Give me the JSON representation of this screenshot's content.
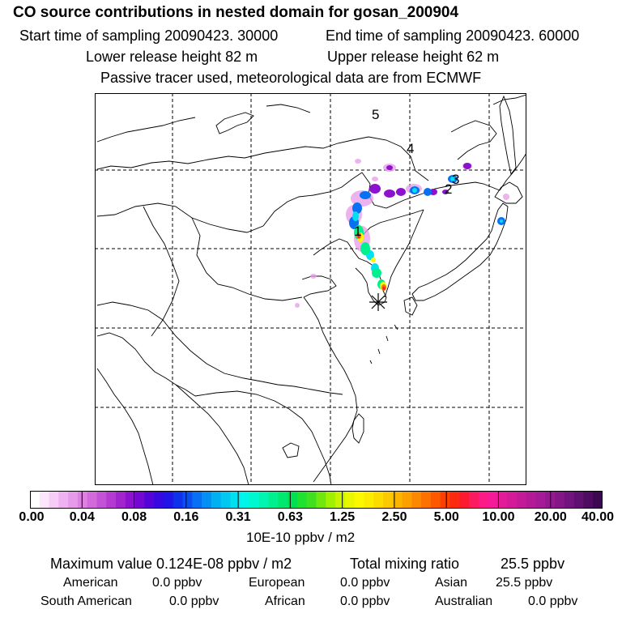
{
  "header": {
    "title": "CO  source contributions in nested domain for gosan_200904",
    "start_time": "Start time of sampling 20090423. 30000",
    "end_time": "End time of sampling 20090423. 60000",
    "lower_release": "Lower release height   82 m",
    "upper_release": "Upper release height   62 m",
    "tracer_info": "Passive tracer used, meteorological data are from ECMWF"
  },
  "map": {
    "day_labels": [
      "1",
      "2",
      "3",
      "4",
      "5"
    ],
    "receptor_marker": "asterisk-icon"
  },
  "colorbar": {
    "ticks": [
      "0.00",
      "0.04",
      "0.08",
      "0.16",
      "0.31",
      "0.63",
      "1.25",
      "2.50",
      "5.00",
      "10.00",
      "20.00",
      "40.00"
    ],
    "unit": "10E-10 ppbv / m2",
    "colors": [
      "#ffffff",
      "#fbe6fb",
      "#f6cdf6",
      "#efb2f0",
      "#e79ae9",
      "#dd82e2",
      "#d26adc",
      "#c452d6",
      "#b43ad1",
      "#a224ce",
      "#8c12cf",
      "#7208d2",
      "#5404d8",
      "#3808e0",
      "#2014e6",
      "#1030ec",
      "#0a50f0",
      "#0870f2",
      "#0490f2",
      "#00b0f0",
      "#00c8f0",
      "#00e0ee",
      "#00f4ea",
      "#00f8d0",
      "#00f6b0",
      "#00f090",
      "#00e870",
      "#00e050",
      "#20e030",
      "#40e020",
      "#70e810",
      "#a0f000",
      "#c8f400",
      "#e8f800",
      "#fcf800",
      "#fcec00",
      "#fcdc00",
      "#fcc800",
      "#fcb400",
      "#fca000",
      "#fc8800",
      "#fc7000",
      "#fc5800",
      "#fc4000",
      "#fc2a10",
      "#fc1a30",
      "#fc1a60",
      "#fc1a88",
      "#f41a98",
      "#e41a98",
      "#d41a98",
      "#c41a98",
      "#b41a98",
      "#a41a98",
      "#941890",
      "#841688",
      "#721480",
      "#601070",
      "#4e0c60",
      "#3c0850"
    ]
  },
  "stats": {
    "max_label": "Maximum value  0.124E-08 ppbv / m2",
    "total_label": "Total mixing ratio",
    "total_value": "25.5 ppbv",
    "american_label": "American",
    "american_value": "0.0 ppbv",
    "european_label": "European",
    "european_value": "0.0 ppbv",
    "asian_label": "Asian",
    "asian_value": "25.5 ppbv",
    "south_american_label": "South American",
    "south_american_value": "0.0 ppbv",
    "african_label": "African",
    "african_value": "0.0 ppbv",
    "australian_label": "Australian",
    "australian_value": "0.0 ppbv"
  }
}
